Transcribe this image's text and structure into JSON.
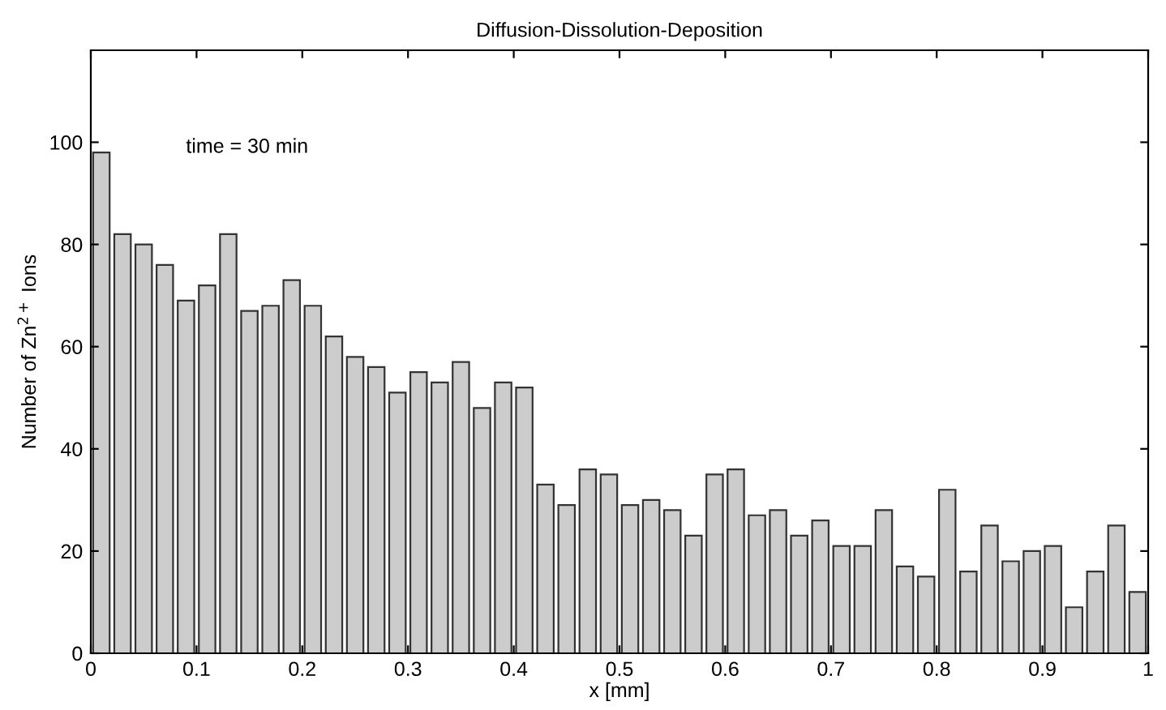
{
  "chart_data": {
    "type": "histogram",
    "title": "Diffusion-Dissolution-Deposition",
    "xlabel": "x [mm]",
    "ylabel": "Number of Zn$^{2+}$ Ions",
    "annotations": [
      "time = 30 min"
    ],
    "bins": [
      0,
      0.02,
      0.04,
      0.06,
      0.08,
      0.1,
      0.12,
      0.14,
      0.16,
      0.18,
      0.2,
      0.22,
      0.24,
      0.26,
      0.28,
      0.3,
      0.32,
      0.34,
      0.36,
      0.38,
      0.4,
      0.42,
      0.44,
      0.46,
      0.48,
      0.5,
      0.52,
      0.54,
      0.56,
      0.58,
      0.6,
      0.62,
      0.64,
      0.66,
      0.68,
      0.7,
      0.72,
      0.74,
      0.76,
      0.78,
      0.8,
      0.82,
      0.84,
      0.86,
      0.88,
      0.9,
      0.92,
      0.94,
      0.96,
      0.98,
      1
    ],
    "values": [
      98,
      82,
      80,
      76,
      69,
      72,
      82,
      67,
      68,
      73,
      68,
      62,
      58,
      56,
      51,
      55,
      53,
      57,
      48,
      53,
      52,
      33,
      29,
      36,
      35,
      29,
      30,
      28,
      23,
      35,
      36,
      27,
      28,
      23,
      26,
      21,
      21,
      28,
      17,
      15,
      32,
      16,
      25,
      18,
      20,
      21,
      9,
      16,
      25,
      12
    ],
    "color": "#cccccc",
    "xlim": [
      0,
      1
    ],
    "ylim": [
      0,
      118
    ],
    "xticks": [
      0,
      0.1,
      0.2,
      0.3,
      0.4,
      0.5,
      0.6,
      0.7,
      0.8,
      0.9,
      1
    ],
    "yticks": [
      0,
      20,
      40,
      60,
      80,
      100
    ],
    "grid": false
  }
}
